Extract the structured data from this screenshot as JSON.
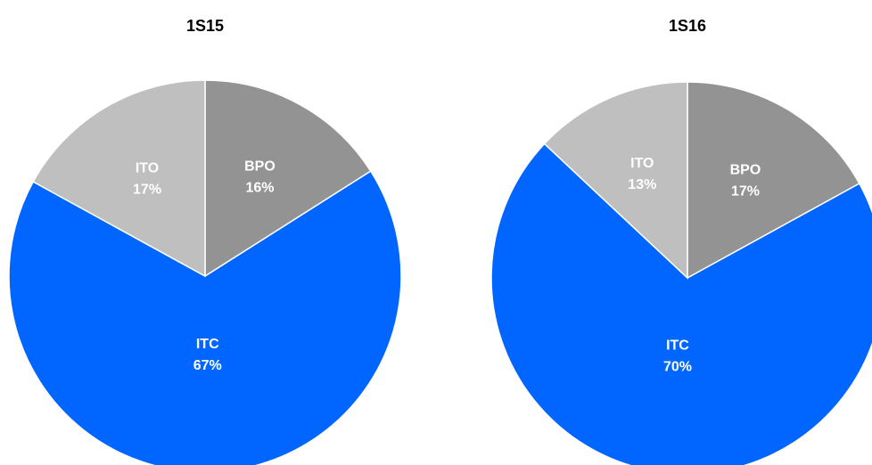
{
  "chart_data": [
    {
      "type": "pie",
      "title": "1S15",
      "categories": [
        "BPO",
        "ITC",
        "ITO"
      ],
      "values": [
        16,
        67,
        17
      ],
      "value_labels": [
        "16%",
        "67%",
        "17%"
      ],
      "colors": [
        "#939393",
        "#0066ff",
        "#bfbfbf"
      ]
    },
    {
      "type": "pie",
      "title": "1S16",
      "categories": [
        "BPO",
        "ITC",
        "ITO"
      ],
      "values": [
        17,
        70,
        13
      ],
      "value_labels": [
        "17%",
        "70%",
        "13%"
      ],
      "colors": [
        "#939393",
        "#0066ff",
        "#bfbfbf"
      ]
    }
  ]
}
